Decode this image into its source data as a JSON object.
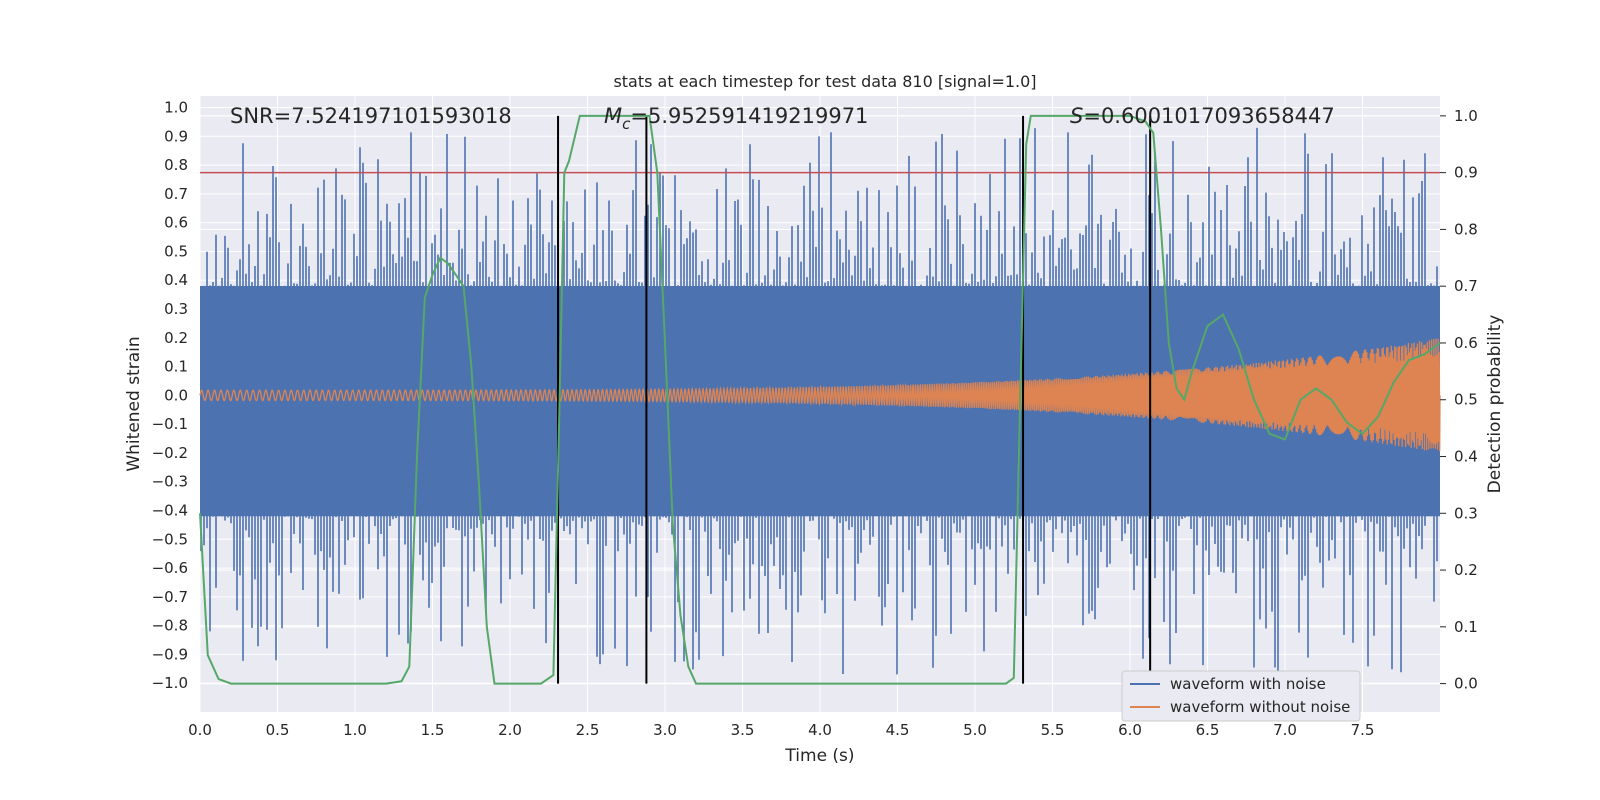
{
  "chart_data": {
    "type": "line",
    "title": "stats at each timestep for test data 810 [signal=1.0]",
    "xlabel": "Time (s)",
    "ylabel": "Whitened strain",
    "y2label": "Detection probability",
    "xlim": [
      0,
      8
    ],
    "ylim": [
      -1.1,
      1.04
    ],
    "y2lim": [
      -0.05,
      1.035
    ],
    "xticks": [
      "0.0",
      "0.5",
      "1.0",
      "1.5",
      "2.0",
      "2.5",
      "3.0",
      "3.5",
      "4.0",
      "4.5",
      "5.0",
      "5.5",
      "6.0",
      "6.5",
      "7.0",
      "7.5"
    ],
    "yticks": [
      "-1.0",
      "-0.9",
      "-0.8",
      "-0.7",
      "-0.6",
      "-0.5",
      "-0.4",
      "-0.3",
      "-0.2",
      "-0.1",
      "0.0",
      "0.1",
      "0.2",
      "0.3",
      "0.4",
      "0.5",
      "0.6",
      "0.7",
      "0.8",
      "0.9",
      "1.0"
    ],
    "y2ticks": [
      "0.0",
      "0.1",
      "0.2",
      "0.3",
      "0.4",
      "0.5",
      "0.6",
      "0.7",
      "0.8",
      "0.9",
      "1.0"
    ],
    "grid": true,
    "legend_position": "lower-right",
    "annotations": {
      "snr": "SNR=7.524197101593018",
      "mc_symbol": "M",
      "mc_sub": "c",
      "mc_value": "=5.952591419219971",
      "s_symbol": "S",
      "s_value": "=0.6001017093658447"
    },
    "threshold": 0.9,
    "vlines": [
      2.31,
      2.88,
      5.31,
      6.13
    ],
    "series": [
      {
        "name": "waveform with noise",
        "color": "#4c72b0",
        "envelope_pos": 0.38,
        "envelope_neg": -0.42
      },
      {
        "name": "waveform without noise",
        "color": "#dd8452",
        "start_amp": 0.018,
        "end_amp": 0.2
      },
      {
        "color": "#55a868",
        "x": [
          0.0,
          0.05,
          0.12,
          0.2,
          0.3,
          0.5,
          0.8,
          1.0,
          1.2,
          1.3,
          1.35,
          1.4,
          1.45,
          1.5,
          1.55,
          1.6,
          1.65,
          1.7,
          1.75,
          1.8,
          1.85,
          1.9,
          1.95,
          2.0,
          2.1,
          2.2,
          2.28,
          2.32,
          2.35,
          2.38,
          2.45,
          2.6,
          2.8,
          2.9,
          2.95,
          3.0,
          3.05,
          3.1,
          3.15,
          3.2,
          3.3,
          3.6,
          4.0,
          4.5,
          5.0,
          5.2,
          5.25,
          5.3,
          5.33,
          5.36,
          5.4,
          5.6,
          5.8,
          6.0,
          6.1,
          6.15,
          6.2,
          6.25,
          6.3,
          6.35,
          6.4,
          6.5,
          6.6,
          6.7,
          6.8,
          6.9,
          7.0,
          7.1,
          7.2,
          7.3,
          7.4,
          7.5,
          7.6,
          7.7,
          7.8,
          7.9,
          8.0
        ],
        "y": [
          0.3,
          0.05,
          0.008,
          0.0,
          0.0,
          0.0,
          0.0,
          0.0,
          0.0,
          0.004,
          0.03,
          0.4,
          0.68,
          0.72,
          0.75,
          0.74,
          0.72,
          0.7,
          0.56,
          0.35,
          0.1,
          0.0,
          0.0,
          0.0,
          0.0,
          0.0,
          0.015,
          0.5,
          0.9,
          0.92,
          1.0,
          1.0,
          1.0,
          1.0,
          0.9,
          0.6,
          0.28,
          0.12,
          0.03,
          0.0,
          0.0,
          0.0,
          0.0,
          0.0,
          0.0,
          0.0,
          0.01,
          0.6,
          0.95,
          1.0,
          1.0,
          1.0,
          1.0,
          1.0,
          0.99,
          0.97,
          0.8,
          0.6,
          0.52,
          0.5,
          0.55,
          0.63,
          0.65,
          0.59,
          0.5,
          0.44,
          0.43,
          0.5,
          0.52,
          0.5,
          0.46,
          0.44,
          0.47,
          0.53,
          0.57,
          0.58,
          0.6
        ]
      }
    ],
    "colors": {
      "threshold": "#c44e52",
      "vline": "#000000",
      "plot_bg": "#eaeaf2",
      "grid": "#ffffff"
    }
  }
}
